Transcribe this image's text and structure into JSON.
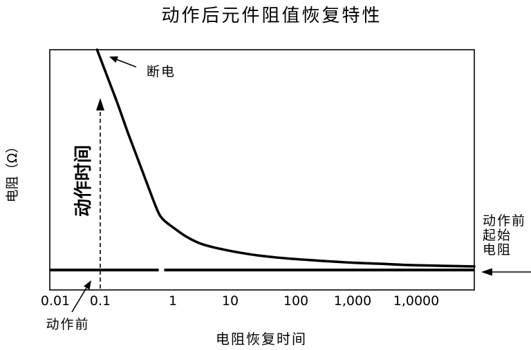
{
  "chart_data": {
    "type": "line",
    "title": "动作后元件阻值恢复特性",
    "xlabel": "电阻恢复时间",
    "ylabel": "电阻（Ω）",
    "x_scale": "log",
    "xlim": [
      0.0075,
      82000
    ],
    "ylim": [
      0,
      100
    ],
    "grid": false,
    "legend": false,
    "x_ticks": [
      {
        "value": 0.01,
        "label": "0.01"
      },
      {
        "value": 0.1,
        "label": "0.1"
      },
      {
        "value": 1,
        "label": "1"
      },
      {
        "value": 10,
        "label": "10"
      },
      {
        "value": 100,
        "label": "100"
      },
      {
        "value": 1000,
        "label": "1,000"
      },
      {
        "value": 10000,
        "label": "1,0000"
      }
    ],
    "series": [
      {
        "points": [
          [
            0.085,
            100
          ],
          [
            0.124,
            89.1
          ],
          [
            0.173,
            77.6
          ],
          [
            0.24,
            65.5
          ],
          [
            0.334,
            54.0
          ],
          [
            0.464,
            42.5
          ],
          [
            0.616,
            33.0
          ],
          [
            0.736,
            29.3
          ],
          [
            1,
            26.1
          ],
          [
            1.74,
            22.1
          ],
          [
            3.03,
            19.3
          ],
          [
            6.97,
            17.0
          ],
          [
            19.2,
            14.9
          ],
          [
            50.7,
            13.5
          ],
          [
            185,
            12.4
          ],
          [
            755,
            11.5
          ],
          [
            2720,
            10.9
          ],
          [
            9500,
            10.3
          ],
          [
            82000,
            9.8
          ]
        ]
      }
    ],
    "baseline": {
      "y": 8.3,
      "gap": [
        0.64,
        0.76
      ]
    },
    "annotations": {
      "power_off": {
        "label": "断电"
      },
      "action_time": {
        "label": "动作时间",
        "x": 0.1
      },
      "before_action": {
        "label": "动作前"
      },
      "initial_resistance": {
        "lines": [
          "动作前",
          "起始",
          "电阻"
        ]
      }
    },
    "colors": {
      "line": "#000000",
      "background": "#ffffff"
    }
  }
}
